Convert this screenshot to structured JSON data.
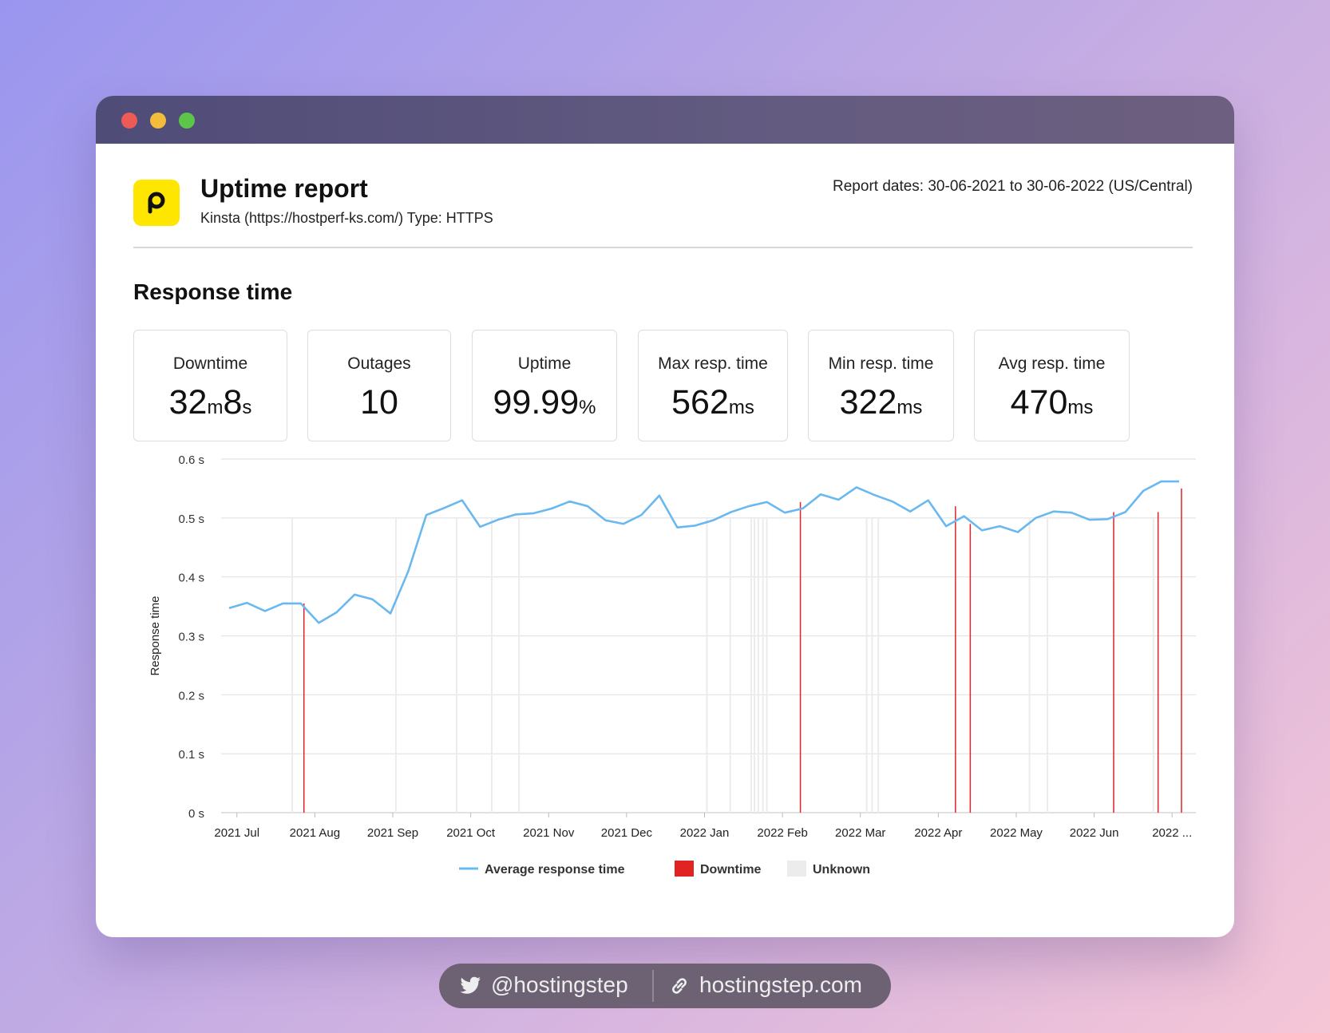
{
  "header": {
    "title": "Uptime report",
    "subtitle": "Kinsta (https://hostperf-ks.com/) Type: HTTPS",
    "report_dates": "Report dates: 30-06-2021 to 30-06-2022 (US/Central)",
    "logo_color": "#ffe600"
  },
  "section_title": "Response time",
  "stats": [
    {
      "label": "Downtime",
      "v1": "32",
      "u1": "m",
      "v2": "8",
      "u2": "s"
    },
    {
      "label": "Outages",
      "v1": "10",
      "u1": "",
      "v2": "",
      "u2": ""
    },
    {
      "label": "Uptime",
      "v1": "99.99",
      "u1": "%",
      "v2": "",
      "u2": ""
    },
    {
      "label": "Max resp. time",
      "v1": "562",
      "u1": "ms",
      "v2": "",
      "u2": ""
    },
    {
      "label": "Min resp. time",
      "v1": "322",
      "u1": "ms",
      "v2": "",
      "u2": ""
    },
    {
      "label": "Avg resp. time",
      "v1": "470",
      "u1": "ms",
      "v2": "",
      "u2": ""
    }
  ],
  "chart_data": {
    "type": "line",
    "ylabel": "Response time",
    "ylim": [
      0,
      0.6
    ],
    "y_ticks": [
      "0 s",
      "0.1 s",
      "0.2 s",
      "0.3 s",
      "0.4 s",
      "0.5 s",
      "0.6 s"
    ],
    "x_ticks": [
      "2021 Jul",
      "2021 Aug",
      "2021 Sep",
      "2021 Oct",
      "2021 Nov",
      "2021 Dec",
      "2022 Jan",
      "2022 Feb",
      "2022 Mar",
      "2022 Apr",
      "2022 May",
      "2022 Jun",
      "2022 ..."
    ],
    "x_tick_months": [
      0,
      1,
      2,
      3,
      4,
      5,
      6,
      7,
      8,
      9,
      10,
      11,
      12
    ],
    "x_range_months": [
      -0.1,
      12.1
    ],
    "series": [
      {
        "name": "Average response time",
        "color": "#6ab8f0",
        "x_months": [
          -0.1,
          0.13,
          0.36,
          0.59,
          0.82,
          1.05,
          1.28,
          1.51,
          1.74,
          1.97,
          2.2,
          2.43,
          2.66,
          2.89,
          3.12,
          3.35,
          3.58,
          3.81,
          4.04,
          4.27,
          4.5,
          4.73,
          4.96,
          5.19,
          5.42,
          5.65,
          5.88,
          6.11,
          6.34,
          6.57,
          6.8,
          7.03,
          7.26,
          7.49,
          7.72,
          7.95,
          8.18,
          8.41,
          8.64,
          8.87,
          9.1,
          9.33,
          9.56,
          9.79,
          10.02,
          10.25,
          10.48,
          10.71,
          10.94,
          11.17,
          11.4,
          11.63,
          11.86,
          12.09
        ],
        "values": [
          0.347,
          0.356,
          0.342,
          0.355,
          0.355,
          0.322,
          0.34,
          0.37,
          0.362,
          0.338,
          0.41,
          0.505,
          0.517,
          0.53,
          0.485,
          0.497,
          0.506,
          0.508,
          0.516,
          0.528,
          0.52,
          0.496,
          0.49,
          0.505,
          0.538,
          0.484,
          0.487,
          0.496,
          0.51,
          0.52,
          0.527,
          0.509,
          0.516,
          0.54,
          0.531,
          0.552,
          0.539,
          0.528,
          0.511,
          0.53,
          0.486,
          0.503,
          0.479,
          0.486,
          0.476,
          0.5,
          0.511,
          0.509,
          0.497,
          0.498,
          0.51,
          0.546,
          0.562,
          0.562
        ]
      }
    ],
    "downtime_months": [
      0.86,
      7.23,
      9.22,
      9.41,
      11.25,
      11.82,
      12.12
    ],
    "downtime_values": [
      0.355,
      0.527,
      0.52,
      0.49,
      0.51,
      0.51,
      0.55
    ],
    "downtime_color": "#e02424",
    "unknown_months": [
      0.71,
      2.04,
      2.82,
      3.27,
      3.62,
      6.03,
      6.33,
      6.6,
      6.64,
      6.69,
      6.75,
      6.8,
      8.08,
      8.15,
      8.23,
      10.17,
      10.4,
      11.76
    ],
    "unknown_color": "#ececec",
    "legend": [
      {
        "label": "Average response time",
        "kind": "line",
        "color": "#6ab8f0"
      },
      {
        "label": "Downtime",
        "kind": "box",
        "color": "#e02424"
      },
      {
        "label": "Unknown",
        "kind": "box",
        "color": "#ececec"
      }
    ]
  },
  "social": {
    "twitter": "@hostingstep",
    "website": "hostingstep.com"
  }
}
